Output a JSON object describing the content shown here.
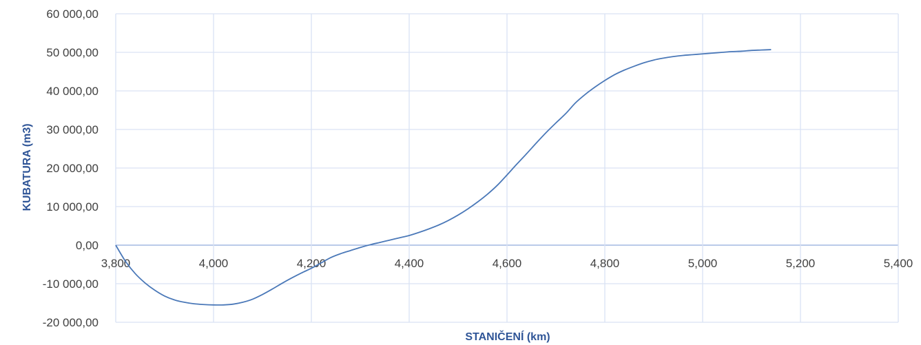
{
  "chart_data": {
    "type": "line",
    "title": "",
    "xlabel": "STANIČENÍ (km)",
    "ylabel": "KUBATURA (m3)",
    "xlim": [
      3.8,
      5.4
    ],
    "ylim": [
      -20000,
      60000
    ],
    "x_ticks": [
      3.8,
      4.0,
      4.2,
      4.4,
      4.6,
      4.8,
      5.0,
      5.2,
      5.4
    ],
    "x_tick_labels": [
      "3,800",
      "4,000",
      "4,200",
      "4,400",
      "4,600",
      "4,800",
      "5,000",
      "5,200",
      "5,400"
    ],
    "y_ticks": [
      60000,
      50000,
      40000,
      30000,
      20000,
      10000,
      0,
      -10000,
      -20000
    ],
    "y_tick_labels": [
      "60 000,00",
      "50 000,00",
      "40 000,00",
      "30 000,00",
      "20 000,00",
      "10 000,00",
      "0,00",
      "-10 000,00",
      "-20 000,00"
    ],
    "grid": true,
    "legend": "none",
    "series_color": "#4a78b8",
    "series": [
      {
        "x": [
          3.8,
          3.82,
          3.84,
          3.86,
          3.88,
          3.9,
          3.92,
          3.94,
          3.96,
          3.98,
          4.0,
          4.02,
          4.04,
          4.06,
          4.08,
          4.1,
          4.12,
          4.14,
          4.16,
          4.18,
          4.2,
          4.22,
          4.24,
          4.26,
          4.28,
          4.3,
          4.32,
          4.34,
          4.36,
          4.38,
          4.4,
          4.42,
          4.44,
          4.46,
          4.48,
          4.5,
          4.52,
          4.54,
          4.56,
          4.58,
          4.6,
          4.62,
          4.64,
          4.66,
          4.68,
          4.7,
          4.72,
          4.74,
          4.76,
          4.78,
          4.8,
          4.82,
          4.84,
          4.86,
          4.88,
          4.9,
          4.92,
          4.94,
          4.96,
          4.98,
          5.0,
          5.02,
          5.04,
          5.06,
          5.08,
          5.1,
          5.12,
          5.14
        ],
        "y": [
          0,
          -4200,
          -7400,
          -9800,
          -11700,
          -13200,
          -14200,
          -14800,
          -15200,
          -15400,
          -15500,
          -15500,
          -15300,
          -14800,
          -14000,
          -12800,
          -11400,
          -9900,
          -8500,
          -7200,
          -6000,
          -4600,
          -3200,
          -2200,
          -1400,
          -600,
          100,
          700,
          1300,
          1900,
          2500,
          3300,
          4200,
          5200,
          6400,
          7800,
          9400,
          11200,
          13200,
          15500,
          18200,
          21000,
          23700,
          26500,
          29200,
          31700,
          34100,
          36900,
          39100,
          41000,
          42700,
          44200,
          45400,
          46400,
          47300,
          48000,
          48500,
          48900,
          49200,
          49400,
          49600,
          49800,
          50000,
          50200,
          50300,
          50500,
          50600,
          50700
        ]
      }
    ]
  }
}
